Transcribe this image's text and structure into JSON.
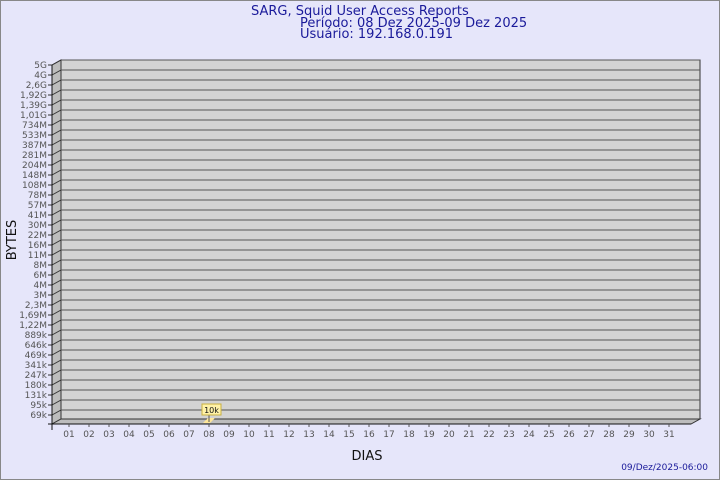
{
  "chart_data": {
    "type": "bar",
    "title": "SARG, Squid User Access Reports",
    "subtitle": [
      "Período: 08 Dez 2025-09 Dez 2025",
      "Usuário: 192.168.0.191"
    ],
    "xlabel": "DIAS",
    "ylabel": "BYTES",
    "y_scale": "log",
    "y_ticks": [
      "5G",
      "4G",
      "2,6G",
      "1,92G",
      "1,39G",
      "1,01G",
      "734M",
      "533M",
      "387M",
      "281M",
      "204M",
      "148M",
      "108M",
      "78M",
      "57M",
      "41M",
      "30M",
      "22M",
      "16M",
      "11M",
      "8M",
      "6M",
      "4M",
      "3M",
      "2,3M",
      "1,69M",
      "1,22M",
      "889k",
      "646k",
      "469k",
      "341k",
      "247k",
      "180k",
      "131k",
      "95k",
      "69k"
    ],
    "categories": [
      "01",
      "02",
      "03",
      "04",
      "05",
      "06",
      "07",
      "08",
      "09",
      "10",
      "11",
      "12",
      "13",
      "14",
      "15",
      "16",
      "17",
      "18",
      "19",
      "20",
      "21",
      "22",
      "23",
      "24",
      "25",
      "26",
      "27",
      "28",
      "29",
      "30",
      "31"
    ],
    "series": [
      {
        "values": [
          null,
          null,
          null,
          null,
          null,
          null,
          null,
          10000,
          null,
          null,
          null,
          null,
          null,
          null,
          null,
          null,
          null,
          null,
          null,
          null,
          null,
          null,
          null,
          null,
          null,
          null,
          null,
          null,
          null,
          null,
          null
        ]
      }
    ],
    "data_labels": [
      {
        "category": "08",
        "label": "10k"
      }
    ],
    "grid": true,
    "colors": {
      "plot_bg": "#d3d3d3",
      "bar": "#ffe79a",
      "title": "#1a1a9a",
      "background": "#e6e6fa"
    }
  },
  "footer": {
    "timestamp": "09/Dez/2025-06:00"
  }
}
